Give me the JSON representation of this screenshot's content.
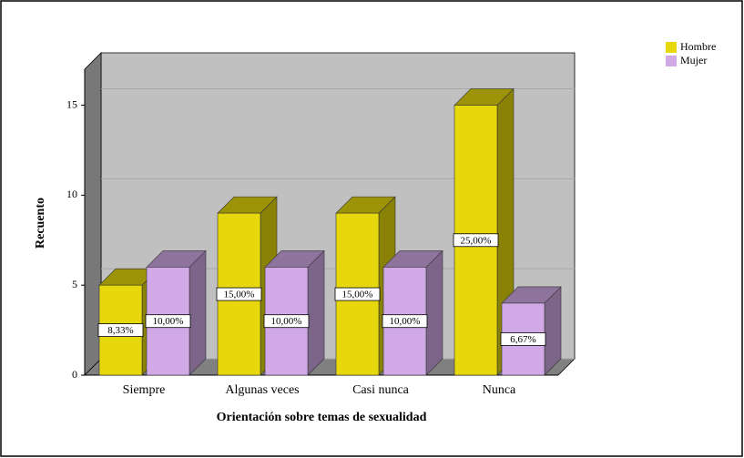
{
  "chart_data": {
    "type": "bar3d",
    "x_label": "Orientación sobre temas de sexualidad",
    "y_label": "Recuento",
    "categories": [
      "Siempre",
      "Algunas veces",
      "Casi nunca",
      "Nunca"
    ],
    "series": [
      {
        "name": "Hombre",
        "color": "#e6d80c",
        "values": [
          5,
          9,
          9,
          15
        ],
        "value_labels": [
          "8,33%",
          "15,00%",
          "15,00%",
          "25,00%"
        ]
      },
      {
        "name": "Mujer",
        "color": "#d1a9e6",
        "values": [
          6,
          6,
          6,
          4
        ],
        "value_labels": [
          "10,00%",
          "10,00%",
          "10,00%",
          "6,67%"
        ]
      }
    ],
    "ylim": [
      0,
      17
    ],
    "yticks": [
      0,
      5,
      10,
      15
    ],
    "grid": true,
    "legend": "top-right"
  }
}
